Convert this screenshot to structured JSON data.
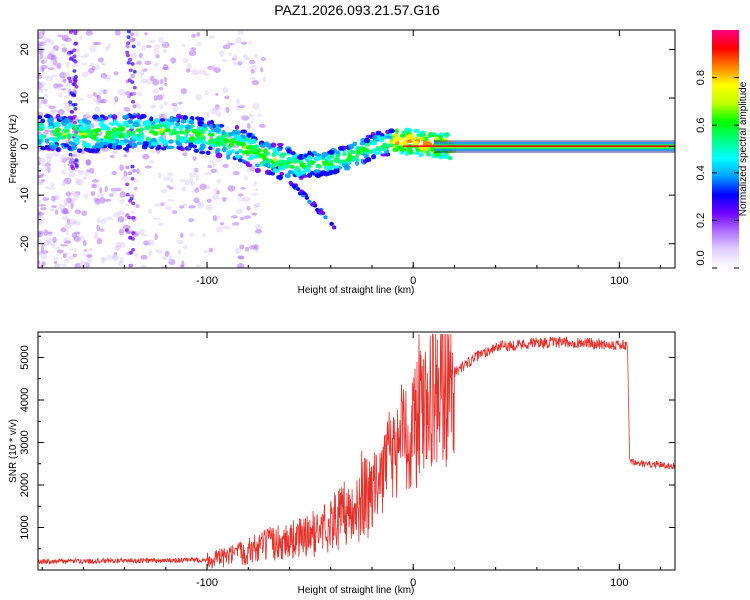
{
  "title": "PAZ1.2026.093.21.57.G16",
  "chart_data": [
    {
      "type": "heatmap",
      "xlabel": "Height of straight line (km)",
      "ylabel": "Frequency (Hz)",
      "xlim": [
        -182,
        127
      ],
      "ylim": [
        -25,
        24
      ],
      "x_ticks": [
        -100,
        0,
        100
      ],
      "y_ticks": [
        -20,
        -10,
        0,
        10,
        20
      ],
      "ridge": {
        "x": [
          -182,
          -160,
          -140,
          -120,
          -105,
          -95,
          -85,
          -75,
          -65,
          -55,
          -45,
          -38,
          -30,
          -20,
          -10,
          0,
          10,
          20,
          60,
          100,
          127
        ],
        "y": [
          3.0,
          2.5,
          3.0,
          3.0,
          2.5,
          1.5,
          0.5,
          -1.5,
          -3.0,
          -4.0,
          -3.5,
          -3.0,
          -2.0,
          0.0,
          1.0,
          1.0,
          0.3,
          0.0,
          0.0,
          0.0,
          0.0
        ]
      },
      "branch": {
        "x": [
          -72,
          -65,
          -58,
          -50,
          -45,
          -40,
          -37
        ],
        "y": [
          -3.0,
          -5.0,
          -8.0,
          -11.0,
          -13.5,
          -15.5,
          -17.0
        ]
      },
      "colorbar": {
        "label": "Normalized spectral amplitude",
        "min": 0.0,
        "max": 1.0,
        "ticks": [
          0.0,
          0.2,
          0.4,
          0.6,
          0.8
        ],
        "tick_labels": [
          "0.0",
          "0.2",
          "0.4",
          "0.6",
          "0.8"
        ],
        "colors": [
          "#ffffff",
          "#e0d0ff",
          "#b070ff",
          "#7000ff",
          "#0000ff",
          "#00a0ff",
          "#00ffff",
          "#00ff80",
          "#00ff00",
          "#c0ff00",
          "#ffff00",
          "#ff8000",
          "#ff0000",
          "#ff0080"
        ]
      }
    },
    {
      "type": "line",
      "xlabel": "Height of straight line (km)",
      "ylabel": "SNR (10 * v/v)",
      "xlim": [
        -182,
        127
      ],
      "ylim": [
        0,
        5600
      ],
      "x_ticks": [
        -100,
        0,
        100
      ],
      "y_ticks": [
        1000,
        2000,
        3000,
        4000,
        5000
      ],
      "line_color": "#e8302a",
      "envelope": {
        "x": [
          -182,
          -160,
          -140,
          -120,
          -100,
          -90,
          -80,
          -70,
          -60,
          -50,
          -40,
          -30,
          -20,
          -15,
          -10,
          -5,
          0,
          5,
          10,
          15,
          20,
          30,
          40,
          60,
          80,
          100,
          104,
          105,
          110,
          127
        ],
        "y": [
          200,
          210,
          220,
          220,
          240,
          300,
          450,
          600,
          700,
          800,
          1100,
          1400,
          1800,
          2300,
          2700,
          3100,
          3400,
          3700,
          4000,
          4300,
          4650,
          5000,
          5250,
          5350,
          5350,
          5300,
          5250,
          2550,
          2500,
          2450
        ]
      }
    }
  ]
}
